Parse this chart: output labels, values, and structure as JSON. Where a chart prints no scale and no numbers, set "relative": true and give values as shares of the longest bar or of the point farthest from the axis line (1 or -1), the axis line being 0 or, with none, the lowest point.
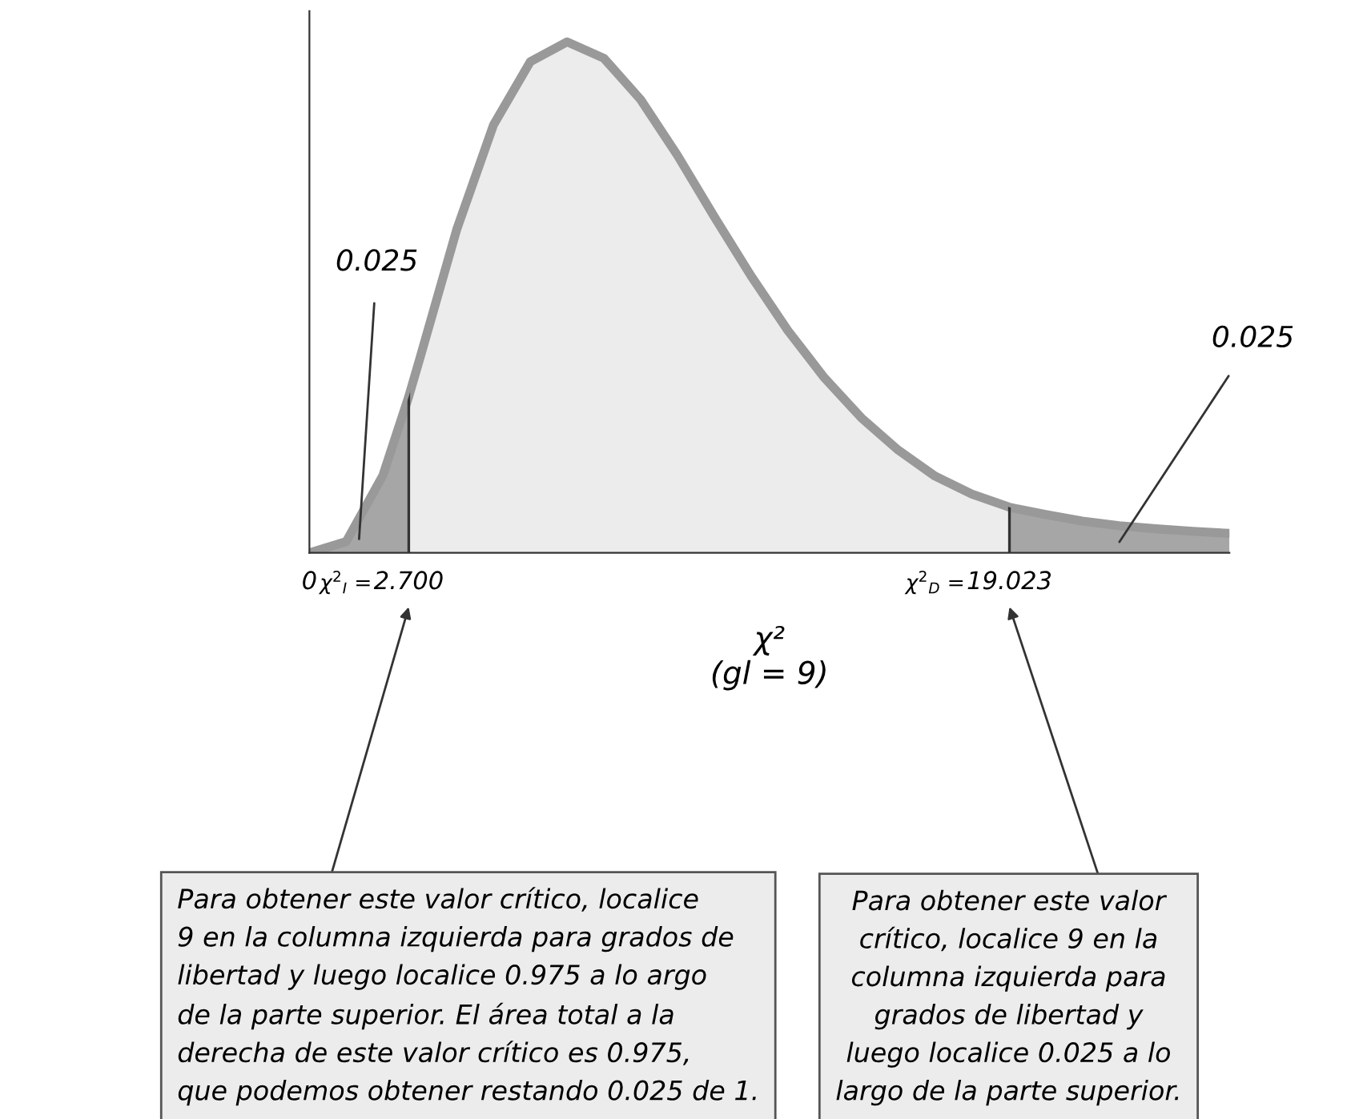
{
  "chart_data": {
    "type": "area",
    "relative": true,
    "xlabel": "χ²\n(gl = 9)",
    "x": [
      0,
      1,
      2,
      2.7,
      3,
      4,
      5,
      6,
      7,
      8,
      9,
      10,
      11,
      12,
      13,
      14,
      15,
      16,
      17,
      18,
      19,
      19.023,
      20,
      21,
      22,
      23,
      24,
      25
    ],
    "series": [
      {
        "color": "#999999",
        "values": [
          0,
          0.022,
          0.152,
          0.306,
          0.38,
          0.632,
          0.837,
          0.961,
          1,
          0.968,
          0.887,
          0.778,
          0.658,
          0.542,
          0.435,
          0.342,
          0.264,
          0.201,
          0.15,
          0.115,
          0.09,
          0.089,
          0.075,
          0.062,
          0.053,
          0.047,
          0.042,
          0.038
        ]
      }
    ],
    "xlim": [
      0,
      25
    ],
    "xticks": [
      0,
      {
        "value": 2.7,
        "label": "2.700"
      },
      19.023
    ],
    "bands": [
      {
        "axis": "x",
        "from": 0,
        "to": 2.7,
        "label": "0.025",
        "color": "#a6a6a6"
      },
      {
        "axis": "x",
        "from": 19.023,
        "to": 25,
        "label": "0.025",
        "color": "#a6a6a6"
      }
    ],
    "ref_lines": [
      {
        "axis": "x",
        "value": 2.7,
        "color": "#333333"
      },
      {
        "axis": "x",
        "value": 19.023,
        "color": "#333333"
      }
    ],
    "annotations": [
      "χ$^{2}$$_{I}$ =",
      "χ$^{2}$$_{D}$ =",
      "Para obtener este valor crítico, localice\n9 en la columna izquierda para grados de\nlibertad y luego localice 0.975 a lo argo\nde la parte superior. El área total a la\nderecha de este valor crítico es 0.975,\nque podemos obtener restando 0.025 de 1.",
      "Para obtener este valor\ncrítico, localice 9 en la\ncolumna izquierda para\ngrados de libertad y\nluego localice 0.025 a lo\nlargo de la parte superior."
    ],
    "grid": false
  }
}
